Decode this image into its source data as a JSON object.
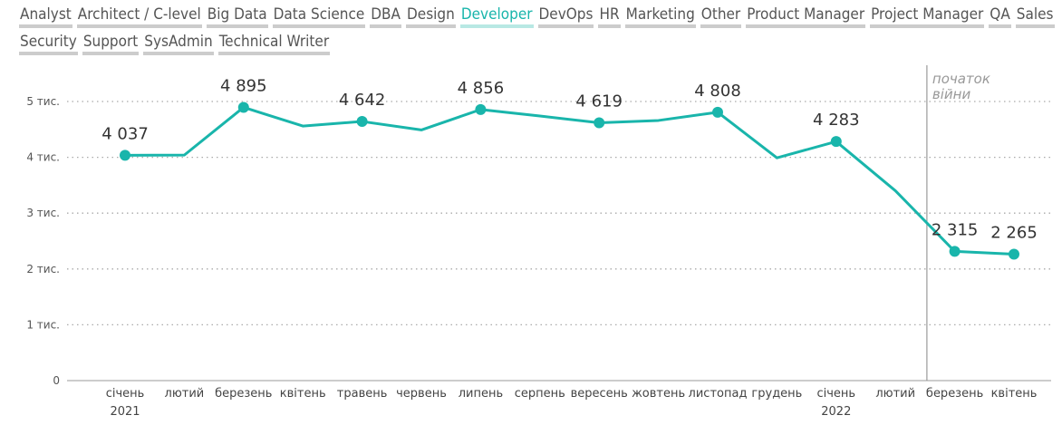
{
  "tabs": {
    "items": [
      "Analyst",
      "Architect / C-level",
      "Big Data",
      "Data Science",
      "DBA",
      "Design",
      "Developer",
      "DevOps",
      "HR",
      "Marketing",
      "Other",
      "Product Manager",
      "Project Manager",
      "QA",
      "Sales",
      "Security",
      "Support",
      "SysAdmin",
      "Technical Writer"
    ],
    "active_index": 6
  },
  "colors": {
    "line": "#19b5ab",
    "active_tab": "#19b5ab",
    "tab_underline": "#cccccc"
  },
  "chart_data": {
    "type": "line",
    "categories": [
      "січень",
      "лютий",
      "березень",
      "квітень",
      "травень",
      "червень",
      "липень",
      "серпень",
      "вересень",
      "жовтень",
      "листопад",
      "грудень",
      "січень",
      "лютий",
      "березень",
      "квітень"
    ],
    "category_years": [
      "2021",
      "",
      "",
      "",
      "",
      "",
      "",
      "",
      "",
      "",
      "",
      "",
      "2022",
      "",
      "",
      ""
    ],
    "values": [
      4037,
      4040,
      4895,
      4560,
      4642,
      4490,
      4856,
      4740,
      4619,
      4660,
      4808,
      3990,
      4283,
      3400,
      2315,
      2265
    ],
    "data_labels": [
      "4 037",
      "",
      "4 895",
      "",
      "4 642",
      "",
      "4 856",
      "",
      "4 619",
      "",
      "4 808",
      "",
      "4 283",
      "",
      "2 315",
      "2 265"
    ],
    "marker_indices": [
      0,
      2,
      4,
      6,
      8,
      10,
      12,
      14,
      15
    ],
    "ylim": [
      0,
      5000
    ],
    "yticks": [
      0,
      1000,
      2000,
      3000,
      4000,
      5000
    ],
    "ytick_labels": [
      "0",
      "1 тис.",
      "2 тис.",
      "3 тис.",
      "4 тис.",
      "5 тис."
    ],
    "grid": true,
    "annotation": {
      "text_lines": [
        "початок",
        "війни"
      ],
      "x_position_between": [
        13,
        14
      ]
    }
  }
}
